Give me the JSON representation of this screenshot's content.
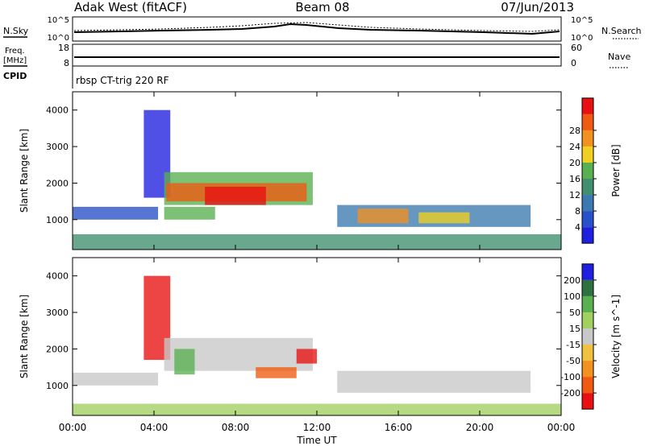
{
  "header": {
    "radar": "Adak West (fitACF)",
    "beam": "Beam 08",
    "date": "07/Jun/2013"
  },
  "panel_labels": {
    "nsky": "N.Sky",
    "nsearch": "N.Search",
    "freq_line1": "Freq.",
    "freq_line2": "[MHz]",
    "nave": "Nave",
    "cpid": "CPID",
    "cpid_value": "rbsp CT-trig 220 RF"
  },
  "noise_axis": {
    "left_ticks": [
      "10^5",
      "10^0"
    ],
    "right_ticks": [
      "10^5",
      "10^0"
    ]
  },
  "freq_axis": {
    "left_ticks": [
      "18",
      "8"
    ],
    "right_ticks": [
      "60",
      "0"
    ]
  },
  "colors": {
    "power_scale": [
      "#1f1fe0",
      "#2850c8",
      "#3a7ab0",
      "#3f8f70",
      "#58b050",
      "#f0d020",
      "#f29020",
      "#f05a10",
      "#e81010"
    ],
    "velocity_scale": [
      "#e81010",
      "#f05a10",
      "#f29020",
      "#f0c040",
      "#c8c8c8",
      "#a0d060",
      "#58b050",
      "#2e7040",
      "#1f1fe0"
    ]
  },
  "chart_data": [
    {
      "type": "heatmap",
      "name": "power",
      "ylabel": "Slant Range [km]",
      "xlabel": "Time UT",
      "x_ticks": [
        "00:00",
        "04:00",
        "08:00",
        "12:00",
        "16:00",
        "20:00",
        "00:00"
      ],
      "y_ticks": [
        1000,
        2000,
        3000,
        4000
      ],
      "xlim": [
        0,
        24
      ],
      "ylim": [
        180,
        4500
      ],
      "colorbar": {
        "label": "Power [dB]",
        "ticks": [
          4,
          8,
          12,
          16,
          20,
          24,
          28
        ]
      },
      "regions": [
        {
          "x": [
            0.0,
            4.2
          ],
          "y": [
            1000,
            1350
          ],
          "level": 1
        },
        {
          "x": [
            3.5,
            4.8
          ],
          "y": [
            1600,
            4000
          ],
          "level": 0
        },
        {
          "x": [
            4.5,
            11.8
          ],
          "y": [
            1400,
            2300
          ],
          "level": 4
        },
        {
          "x": [
            4.6,
            11.5
          ],
          "y": [
            1500,
            2000
          ],
          "level": 7
        },
        {
          "x": [
            6.5,
            9.5
          ],
          "y": [
            1400,
            1900
          ],
          "level": 8
        },
        {
          "x": [
            4.5,
            7.0
          ],
          "y": [
            1000,
            1350
          ],
          "level": 4
        },
        {
          "x": [
            13.0,
            22.5
          ],
          "y": [
            800,
            1400
          ],
          "level": 2
        },
        {
          "x": [
            14.0,
            16.5
          ],
          "y": [
            900,
            1300
          ],
          "level": 6
        },
        {
          "x": [
            17.0,
            19.5
          ],
          "y": [
            900,
            1200
          ],
          "level": 5
        },
        {
          "x": [
            0.0,
            24.0
          ],
          "y": [
            180,
            600
          ],
          "level": 3
        }
      ]
    },
    {
      "type": "heatmap",
      "name": "velocity",
      "ylabel": "Slant Range [km]",
      "xlabel": "Time UT",
      "x_ticks": [
        "00:00",
        "04:00",
        "08:00",
        "12:00",
        "16:00",
        "20:00",
        "00:00"
      ],
      "y_ticks": [
        1000,
        2000,
        3000,
        4000
      ],
      "xlim": [
        0,
        24
      ],
      "ylim": [
        180,
        4500
      ],
      "colorbar": {
        "label": "Velocity [m s^-1]",
        "ticks": [
          -200,
          -100,
          -50,
          -15,
          15,
          50,
          100,
          200
        ]
      },
      "regions": [
        {
          "x": [
            0.0,
            4.2
          ],
          "y": [
            1000,
            1350
          ],
          "level": 4
        },
        {
          "x": [
            3.5,
            4.8
          ],
          "y": [
            1700,
            4000
          ],
          "level": 0
        },
        {
          "x": [
            4.5,
            11.8
          ],
          "y": [
            1400,
            2300
          ],
          "level": 4
        },
        {
          "x": [
            5.0,
            6.0
          ],
          "y": [
            1300,
            2000
          ],
          "level": 6
        },
        {
          "x": [
            9.0,
            11.0
          ],
          "y": [
            1200,
            1500
          ],
          "level": 1
        },
        {
          "x": [
            11.0,
            12.0
          ],
          "y": [
            1600,
            2000
          ],
          "level": 0
        },
        {
          "x": [
            13.0,
            22.5
          ],
          "y": [
            800,
            1400
          ],
          "level": 4
        },
        {
          "x": [
            0.0,
            24.0
          ],
          "y": [
            180,
            500
          ],
          "level": 5
        }
      ]
    }
  ]
}
